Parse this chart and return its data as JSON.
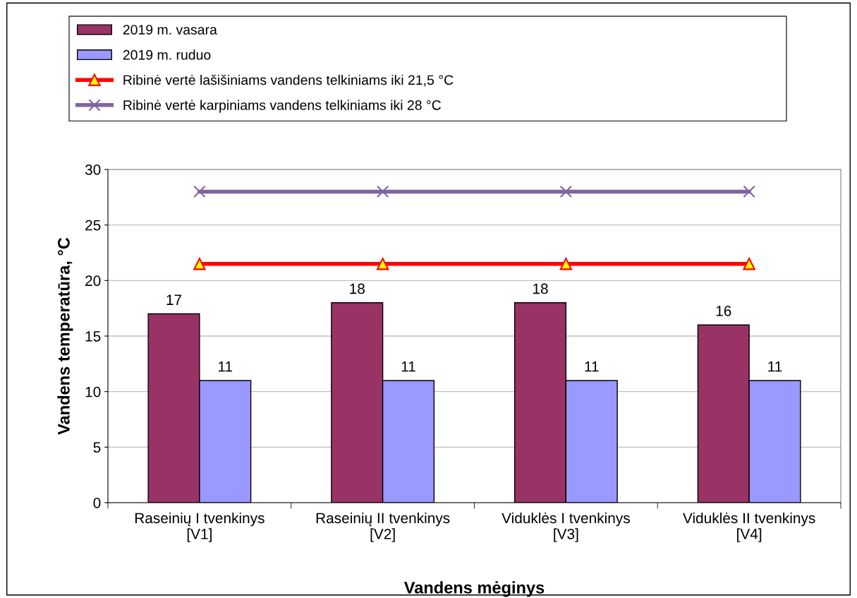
{
  "chart_data": {
    "type": "bar",
    "xlabel": "Vandens mėginys",
    "ylabel": "Vandens temperatūra, °C",
    "categories": [
      "Raseinių I tvenkinys\n[V1]",
      "Raseinių II tvenkinys\n[V2]",
      "Viduklės I tvenkinys\n[V3]",
      "Viduklės II tvenkinys\n[V4]"
    ],
    "series": [
      {
        "name": "2019 m. vasara",
        "color": "#993366",
        "values": [
          17,
          18,
          18,
          16
        ],
        "value_labels": [
          "17",
          "18",
          "18",
          "16"
        ]
      },
      {
        "name": "2019 m. ruduo",
        "color": "#9999ff",
        "values": [
          11,
          11,
          11,
          11
        ],
        "value_labels": [
          "11",
          "11",
          "11",
          "11"
        ]
      },
      {
        "name": "Ribinė vertė lašišiniams vandens telkiniams iki 21,5 °C",
        "type": "line",
        "color": "#ff0000",
        "marker": "triangle",
        "values": [
          21.5,
          21.5,
          21.5,
          21.5
        ]
      },
      {
        "name": "Ribinė vertė karpiniams vandens telkiniams iki 28 °C",
        "type": "line",
        "color": "#8064a2",
        "marker": "cross",
        "values": [
          28,
          28,
          28,
          28
        ]
      }
    ],
    "ylim": [
      0,
      30
    ],
    "yticks": [
      0,
      5,
      10,
      15,
      20,
      25,
      30
    ],
    "grid": "y",
    "legend": "top"
  }
}
